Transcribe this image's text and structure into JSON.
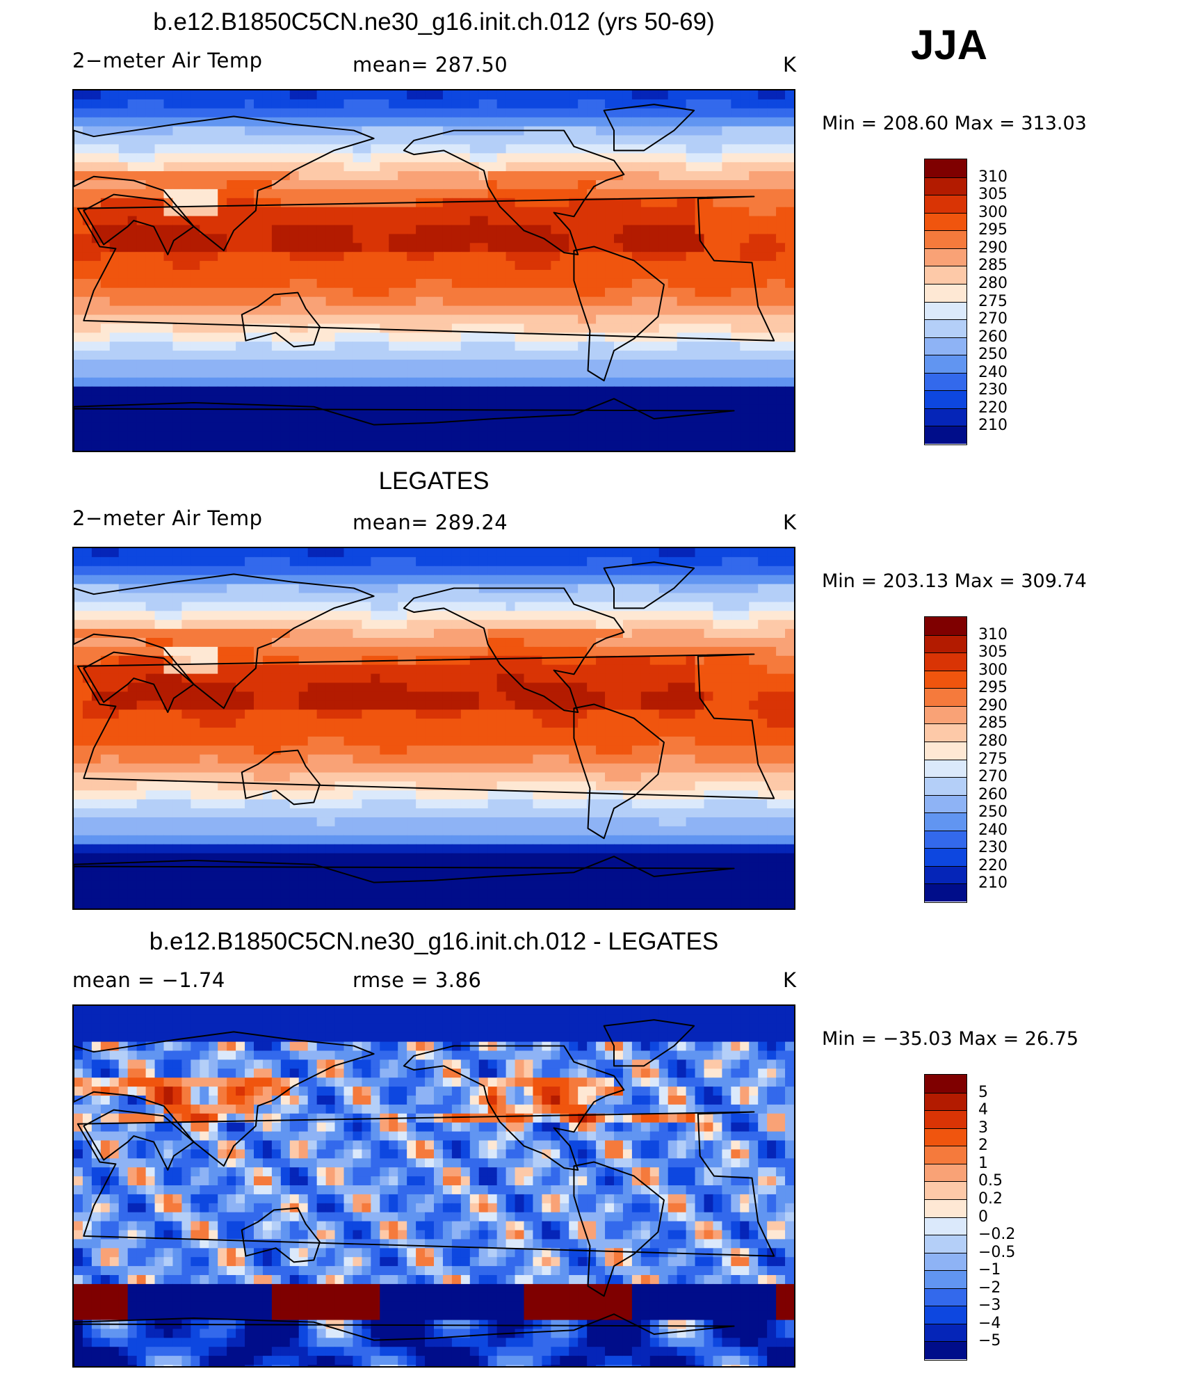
{
  "season": "JJA",
  "panels": [
    {
      "title": "b.e12.B1850C5CN.ne30_g16.init.ch.012 (yrs 50-69)",
      "left_label": "2−meter Air Temp",
      "center_label": "mean=  287.50",
      "units": "K",
      "min_max": "Min  =  208.60  Max  =  313.03",
      "colorbar_labels": [
        "310",
        "305",
        "300",
        "295",
        "290",
        "285",
        "280",
        "275",
        "270",
        "260",
        "250",
        "240",
        "230",
        "220",
        "210"
      ],
      "field_type": "model"
    },
    {
      "title": "LEGATES",
      "left_label": "2−meter Air Temp",
      "center_label": "mean=  289.24",
      "units": "K",
      "min_max": "Min  =  203.13  Max  =  309.74",
      "colorbar_labels": [
        "310",
        "305",
        "300",
        "295",
        "290",
        "285",
        "280",
        "275",
        "270",
        "260",
        "250",
        "240",
        "230",
        "220",
        "210"
      ],
      "field_type": "obs"
    },
    {
      "title": "b.e12.B1850C5CN.ne30_g16.init.ch.012 - LEGATES",
      "left_label": "mean  =     −1.74",
      "center_label": "rmse  =     3.86",
      "units": "K",
      "min_max": "Min  =  −35.03  Max  =    26.75",
      "colorbar_labels": [
        "5",
        "4",
        "3",
        "2",
        "1",
        "0.5",
        "0.2",
        "0",
        "−0.2",
        "−0.5",
        "−1",
        "−2",
        "−3",
        "−4",
        "−5"
      ],
      "field_type": "diff"
    }
  ],
  "colors": {
    "palette": [
      "#7f0000",
      "#b31b00",
      "#d93405",
      "#f0550e",
      "#f57a3c",
      "#f9a276",
      "#fdc9a8",
      "#fee8d4",
      "#dbe9fb",
      "#b4cff8",
      "#8eb3f5",
      "#6195f1",
      "#3369ec",
      "#0d47e0",
      "#0525b8",
      "#000d8a"
    ],
    "coastline": "#000000"
  }
}
